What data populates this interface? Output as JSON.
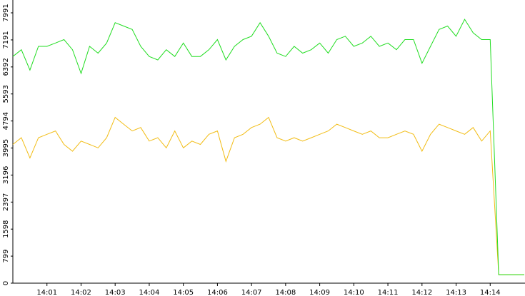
{
  "chart_data": {
    "type": "line",
    "categories": [
      null,
      null,
      null,
      null,
      "14:01",
      null,
      null,
      null,
      "14:02",
      null,
      null,
      null,
      "14:03",
      null,
      null,
      null,
      "14:04",
      null,
      null,
      null,
      "14:05",
      null,
      null,
      null,
      "14:06",
      null,
      null,
      null,
      "14:07",
      null,
      null,
      null,
      "14:08",
      null,
      null,
      null,
      "14:09",
      null,
      null,
      null,
      "14:10",
      null,
      null,
      null,
      "14:11",
      null,
      null,
      null,
      "14:12",
      null,
      null,
      null,
      "14:13",
      null,
      null,
      null,
      "14:14",
      null,
      null,
      null,
      null
    ],
    "series": [
      {
        "color": "#f2bd16",
        "values": [
          4100,
          4300,
          3700,
          4300,
          4400,
          4500,
          4100,
          3900,
          4200,
          4100,
          4000,
          4300,
          4900,
          4700,
          4500,
          4600,
          4200,
          4300,
          4000,
          4500,
          4000,
          4200,
          4100,
          4400,
          4500,
          3600,
          4300,
          4400,
          4600,
          4700,
          4900,
          4300,
          4200,
          4300,
          4200,
          4300,
          4400,
          4500,
          4700,
          4600,
          4500,
          4400,
          4500,
          4300,
          4300,
          4400,
          4500,
          4400,
          3900,
          4400,
          4700,
          4600,
          4500,
          4400,
          4600,
          4200,
          4500,
          250,
          250,
          250,
          250
        ]
      },
      {
        "color": "#22dd22",
        "values": [
          6700,
          6900,
          6300,
          7000,
          7000,
          7100,
          7200,
          6900,
          6200,
          7000,
          6800,
          7100,
          7700,
          7600,
          7500,
          7000,
          6700,
          6600,
          6900,
          6700,
          7100,
          6700,
          6700,
          6900,
          7200,
          6600,
          7000,
          7200,
          7300,
          7700,
          7300,
          6800,
          6700,
          7000,
          6800,
          6900,
          7100,
          6800,
          7200,
          7300,
          7000,
          7100,
          7300,
          7000,
          7100,
          6900,
          7200,
          7200,
          6500,
          7000,
          7500,
          7600,
          7300,
          7800,
          7400,
          7200,
          7200,
          250,
          250,
          250,
          250
        ]
      }
    ],
    "ylim": [
      0,
      7991
    ],
    "yticks": [
      0,
      799,
      1598,
      2397,
      3196,
      3995,
      4794,
      5593,
      6392,
      7191,
      7991
    ]
  }
}
